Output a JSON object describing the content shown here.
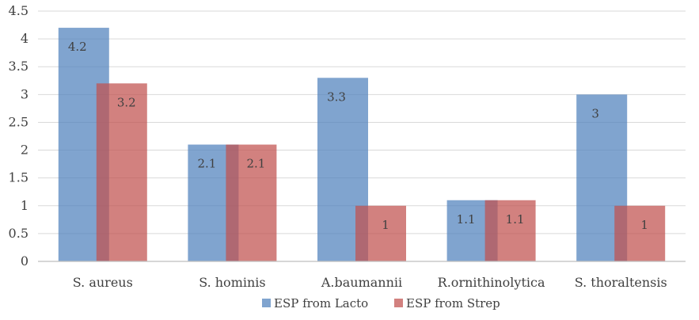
{
  "chart_data": {
    "type": "bar",
    "categories": [
      "S. aureus",
      "S. hominis",
      "A.baumannii",
      "R.ornithinolytica",
      "S. thoraltensis"
    ],
    "series": [
      {
        "name": "ESP from Lacto",
        "values": [
          4.2,
          2.1,
          3.3,
          1.1,
          3
        ],
        "labels": [
          "4.2",
          "2.1",
          "3.3",
          "1.1",
          "3"
        ],
        "color": "#4f81bd"
      },
      {
        "name": "ESP from Strep",
        "values": [
          3.2,
          2.1,
          1,
          1.1,
          1
        ],
        "labels": [
          "3.2",
          "2.1",
          "1",
          "1.1",
          "1"
        ],
        "color": "#c0504d"
      }
    ],
    "yticks": [
      "0",
      "0.5",
      "1",
      "1.5",
      "2",
      "2.5",
      "3",
      "3.5",
      "4",
      "4.5"
    ],
    "ylim": [
      0,
      4.5
    ],
    "grid": true,
    "legend_position": "bottom",
    "title": "",
    "xlabel": "",
    "ylabel": ""
  }
}
